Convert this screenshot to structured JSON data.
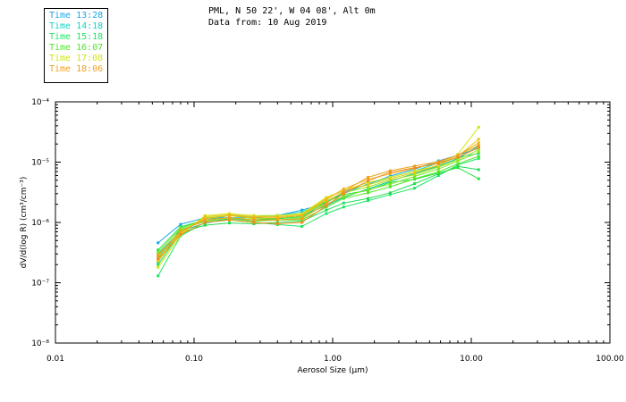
{
  "header": {
    "line1": "PML, N 50 22', W 04 08', Alt 0m",
    "line2": "Data from: 10 Aug 2019"
  },
  "legend": [
    {
      "label": "Time 13:28",
      "color": "#1aa6e6"
    },
    {
      "label": "Time 14:18",
      "color": "#14d2c8"
    },
    {
      "label": "Time 15:18",
      "color": "#1ee664"
    },
    {
      "label": "Time 16:07",
      "color": "#50e628"
    },
    {
      "label": "Time 17:08",
      "color": "#d2e614"
    },
    {
      "label": "Time 18:06",
      "color": "#f0a01e"
    }
  ],
  "chart_data": {
    "type": "line",
    "xscale": "log",
    "yscale": "log",
    "xlim": [
      0.01,
      100
    ],
    "ylim": [
      1e-08,
      0.0001
    ],
    "xlabel": "Aerosol Size (µm)",
    "ylabel": "dV/d(log R) (cm³/cm⁻³)",
    "x_ticks": [
      0.01,
      0.1,
      1,
      10,
      100
    ],
    "x_tick_labels": [
      "0.01",
      "0.10",
      "1.00",
      "10.00",
      "100.00"
    ],
    "y_ticks": [
      1e-08,
      1e-07,
      1e-06,
      1e-05,
      0.0001
    ],
    "y_tick_labels": [
      "10⁻⁸",
      "10⁻⁷",
      "10⁻⁶",
      "10⁻⁵",
      "10⁻⁴"
    ],
    "x": [
      0.055,
      0.08,
      0.12,
      0.18,
      0.27,
      0.4,
      0.6,
      0.9,
      1.2,
      1.8,
      2.6,
      3.9,
      5.8,
      8.0,
      11.3
    ],
    "series": [
      {
        "color": "#1aa6e6",
        "values": [
          4.6e-07,
          9.3e-07,
          1.2e-06,
          1.2e-06,
          1.2e-06,
          1.3e-06,
          1.6e-06,
          2.1e-06,
          3.2e-06,
          4.3e-06,
          5.9e-06,
          7.6e-06,
          1.05e-05,
          1.3e-05,
          1.7e-05
        ]
      },
      {
        "color": "#14d2c8",
        "values": [
          2.2e-07,
          8.1e-07,
          1.1e-06,
          1.3e-06,
          1.25e-06,
          1.3e-06,
          1.5e-06,
          2.2e-06,
          3e-06,
          4.4e-06,
          5.6e-06,
          7.1e-06,
          9.7e-06,
          1.2e-05,
          1.4e-05
        ]
      },
      {
        "color": "#10c8a0",
        "values": [
          3e-07,
          7.2e-07,
          9.7e-07,
          1.15e-06,
          1.1e-06,
          1.2e-06,
          1.3e-06,
          1.9e-06,
          2.6e-06,
          3.6e-06,
          4.8e-06,
          6.5e-06,
          8.6e-06,
          1.15e-05,
          1.85e-05
        ]
      },
      {
        "color": "#1ee664",
        "values": [
          1.3e-07,
          6e-07,
          1e-06,
          1.1e-06,
          1e-06,
          9.2e-07,
          8.6e-07,
          1.4e-06,
          1.8e-06,
          2.3e-06,
          2.9e-06,
          3.7e-06,
          6e-06,
          9e-06,
          1.15e-05
        ]
      },
      {
        "color": "#22dc50",
        "values": [
          2e-07,
          6.8e-07,
          9e-07,
          9.8e-07,
          9.5e-07,
          1e-06,
          1.05e-06,
          1.6e-06,
          2.1e-06,
          2.5e-06,
          3.1e-06,
          4.4e-06,
          6.4e-06,
          8.5e-06,
          7.5e-06
        ]
      },
      {
        "color": "#28e03c",
        "values": [
          3.5e-07,
          8.5e-07,
          1.1e-06,
          1.2e-06,
          1.1e-06,
          1.15e-06,
          1.25e-06,
          2.2e-06,
          2.9e-06,
          3.4e-06,
          4.6e-06,
          5.2e-06,
          6.6e-06,
          8.1e-06,
          5.3e-06
        ]
      },
      {
        "color": "#50e628",
        "values": [
          2.6e-07,
          7.6e-07,
          1.05e-06,
          1.15e-06,
          1.05e-06,
          1.1e-06,
          1.1e-06,
          1.8e-06,
          2.5e-06,
          3.1e-06,
          3.9e-06,
          5.3e-06,
          6.9e-06,
          9.4e-06,
          1.25e-05
        ]
      },
      {
        "color": "#78e61e",
        "values": [
          3.2e-07,
          8e-07,
          1.1e-06,
          1.2e-06,
          1.1e-06,
          1.1e-06,
          1.2e-06,
          2e-06,
          2.7e-06,
          3.5e-06,
          4.3e-06,
          5.8e-06,
          7.7e-06,
          1.05e-05,
          1.45e-05
        ]
      },
      {
        "color": "#a0e614",
        "values": [
          2.4e-07,
          7e-07,
          1.2e-06,
          1.3e-06,
          1.15e-06,
          1.2e-06,
          1.3e-06,
          2.3e-06,
          3.1e-06,
          3.9e-06,
          5e-06,
          6.2e-06,
          8.3e-06,
          1.1e-05,
          1.6e-05
        ]
      },
      {
        "color": "#d2e614",
        "values": [
          1.8e-07,
          6.2e-07,
          1.3e-06,
          1.4e-06,
          1.3e-06,
          1.3e-06,
          1.4e-06,
          2.6e-06,
          3.4e-06,
          4.6e-06,
          5.6e-06,
          7.1e-06,
          8.8e-06,
          1.35e-05,
          3.8e-05
        ]
      },
      {
        "color": "#e6c814",
        "values": [
          2.3e-07,
          6.6e-07,
          1.25e-06,
          1.35e-06,
          1.25e-06,
          1.25e-06,
          1.35e-06,
          2.5e-06,
          3.4e-06,
          4.2e-06,
          5.3e-06,
          6.7e-06,
          8.9e-06,
          1.25e-05,
          2.4e-05
        ]
      },
      {
        "color": "#f0b41e",
        "values": [
          2.9e-07,
          6.9e-07,
          1.15e-06,
          1.3e-06,
          1.2e-06,
          1.2e-06,
          1.3e-06,
          2.4e-06,
          3.6e-06,
          5.2e-06,
          6.4e-06,
          7.9e-06,
          9.9e-06,
          1.3e-05,
          2.1e-05
        ]
      },
      {
        "color": "#f0a01e",
        "values": [
          2.8e-07,
          7.2e-07,
          1.1e-06,
          1.2e-06,
          1.1e-06,
          1.1e-06,
          1.15e-06,
          2.1e-06,
          3.3e-06,
          5.6e-06,
          7.2e-06,
          8.6e-06,
          1.02e-05,
          1.3e-05,
          1.9e-05
        ]
      },
      {
        "color": "#f08c1e",
        "values": [
          2.5e-07,
          6.3e-07,
          1e-06,
          1.1e-06,
          1e-06,
          9.5e-07,
          1e-06,
          1.9e-06,
          3e-06,
          4.9e-06,
          6.8e-06,
          8.1e-06,
          9.5e-06,
          1.2e-05,
          1.75e-05
        ]
      }
    ]
  }
}
